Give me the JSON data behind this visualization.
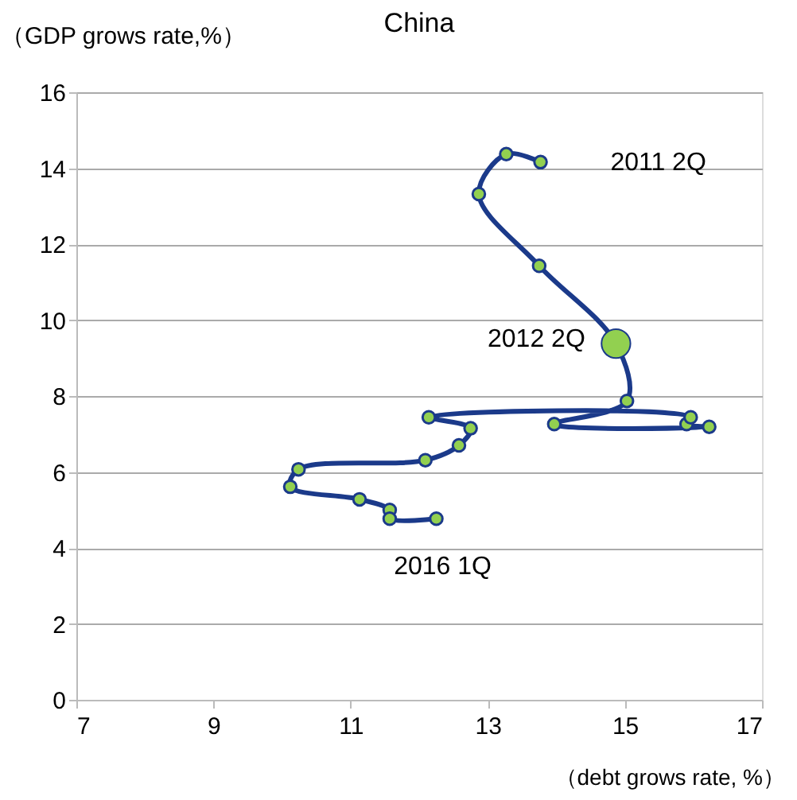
{
  "chart_data": {
    "type": "line",
    "title": "China",
    "xlabel": "（debt grows rate, %）",
    "ylabel": "（GDP grows rate,%）",
    "xlim": [
      7,
      17
    ],
    "xticks": [
      7,
      9,
      11,
      13,
      15,
      17
    ],
    "ylim": [
      0,
      16
    ],
    "yticks": [
      0,
      2,
      4,
      6,
      8,
      10,
      12,
      14,
      16
    ],
    "grid": "y",
    "marker": "circle",
    "line_style": "solid",
    "series": [
      {
        "color": "#1b3a8a",
        "x": [
          13.77,
          13.27,
          12.87,
          13.75,
          14.87,
          15.03,
          13.97,
          16.23,
          15.9,
          15.96,
          12.14,
          12.75,
          12.58,
          12.09,
          10.24,
          10.12,
          11.13,
          11.57,
          11.57,
          12.25
        ],
        "values": [
          14.16,
          14.37,
          13.32,
          11.43,
          9.38,
          7.87,
          7.26,
          7.19,
          7.26,
          7.44,
          7.44,
          7.15,
          6.7,
          6.31,
          6.07,
          5.61,
          5.28,
          5.0,
          4.77,
          4.77
        ]
      },
      {
        "type": "scatter",
        "color": "#92d050",
        "x": [
          14.87
        ],
        "values": [
          9.38
        ]
      }
    ],
    "annotations": [
      {
        "text": "2011 2Q",
        "x": 13.77,
        "y": 14.16
      },
      {
        "text": "2012 2Q",
        "x": 14.87,
        "y": 9.38
      },
      {
        "text": "2016 1Q",
        "x": 12.25,
        "y": 4.77
      }
    ]
  }
}
